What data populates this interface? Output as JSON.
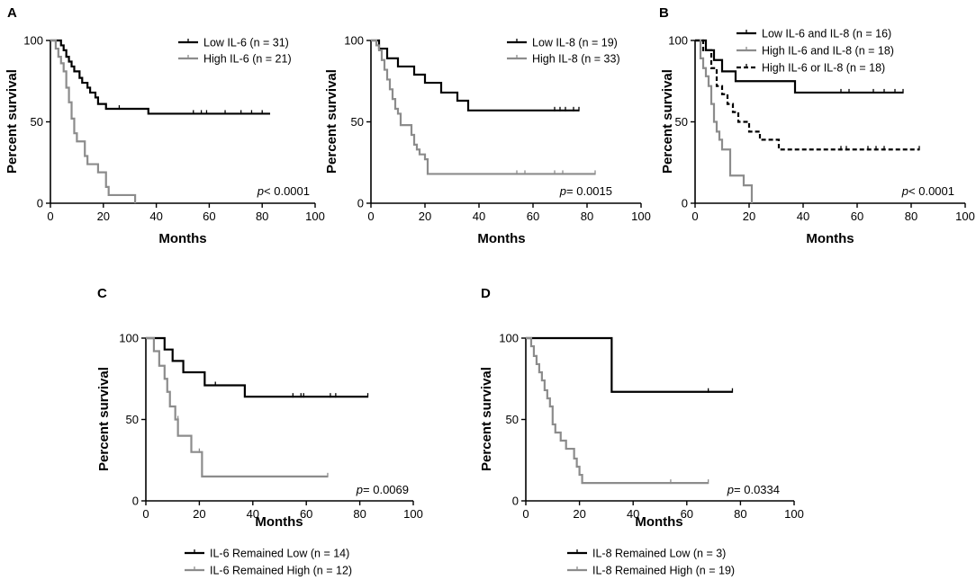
{
  "chart_data": [
    {
      "type": "line",
      "panel": "A",
      "xlabel": "Months",
      "ylabel": "Percent survival",
      "xlim": [
        0,
        100
      ],
      "ylim": [
        0,
        100
      ],
      "xticks": [
        "0",
        "20",
        "40",
        "60",
        "80",
        "100"
      ],
      "yticks": [
        "0",
        "50",
        "100"
      ],
      "legend_placement": "top-right",
      "p_prefix": "p",
      "p_text": "< 0.0001",
      "series": [
        {
          "name": "Low IL-6 (n = 31)",
          "color": "#000000",
          "dash": false,
          "steps": [
            [
              0,
              100
            ],
            [
              4,
              97
            ],
            [
              5,
              94
            ],
            [
              6,
              90
            ],
            [
              7,
              87
            ],
            [
              8,
              84
            ],
            [
              9,
              81
            ],
            [
              11,
              77
            ],
            [
              12,
              74
            ],
            [
              14,
              71
            ],
            [
              15,
              68
            ],
            [
              17,
              65
            ],
            [
              18,
              61
            ],
            [
              21,
              58
            ],
            [
              37,
              55
            ],
            [
              83,
              55
            ]
          ],
          "censored": [
            [
              26,
              58
            ],
            [
              54,
              55
            ],
            [
              57,
              55
            ],
            [
              59,
              55
            ],
            [
              66,
              55
            ],
            [
              72,
              55
            ],
            [
              76,
              55
            ],
            [
              80,
              55
            ]
          ]
        },
        {
          "name": "High IL-6 (n = 21)",
          "color": "#8c8c8c",
          "dash": false,
          "steps": [
            [
              0,
              100
            ],
            [
              2,
              95
            ],
            [
              3,
              90
            ],
            [
              4,
              86
            ],
            [
              5,
              81
            ],
            [
              6,
              71
            ],
            [
              7,
              62
            ],
            [
              8,
              52
            ],
            [
              9,
              43
            ],
            [
              10,
              38
            ],
            [
              13,
              29
            ],
            [
              14,
              24
            ],
            [
              18,
              19
            ],
            [
              21,
              10
            ],
            [
              22,
              5
            ],
            [
              32,
              0
            ]
          ],
          "censored": []
        }
      ]
    },
    {
      "type": "line",
      "panel": "",
      "xlabel": "Months",
      "ylabel": "Percent survival",
      "xlim": [
        0,
        100
      ],
      "ylim": [
        0,
        100
      ],
      "xticks": [
        "0",
        "20",
        "40",
        "60",
        "80",
        "100"
      ],
      "yticks": [
        "0",
        "50",
        "100"
      ],
      "legend_placement": "top-right",
      "p_prefix": "p",
      "p_text": "=  0.0015",
      "series": [
        {
          "name": "Low IL-8 (n = 19)",
          "color": "#000000",
          "dash": false,
          "steps": [
            [
              0,
              100
            ],
            [
              3,
              95
            ],
            [
              6,
              89
            ],
            [
              10,
              84
            ],
            [
              16,
              79
            ],
            [
              20,
              74
            ],
            [
              26,
              68
            ],
            [
              32,
              63
            ],
            [
              36,
              57
            ],
            [
              77,
              57
            ]
          ],
          "censored": [
            [
              68,
              57
            ],
            [
              70,
              57
            ],
            [
              72,
              57
            ],
            [
              75,
              57
            ],
            [
              77,
              57
            ]
          ]
        },
        {
          "name": "High IL-8 (n = 33)",
          "color": "#8c8c8c",
          "dash": false,
          "steps": [
            [
              0,
              100
            ],
            [
              2,
              97
            ],
            [
              3,
              94
            ],
            [
              4,
              88
            ],
            [
              5,
              82
            ],
            [
              6,
              76
            ],
            [
              7,
              70
            ],
            [
              8,
              64
            ],
            [
              9,
              58
            ],
            [
              10,
              55
            ],
            [
              11,
              48
            ],
            [
              15,
              42
            ],
            [
              16,
              36
            ],
            [
              17,
              33
            ],
            [
              18,
              30
            ],
            [
              20,
              27
            ],
            [
              21,
              18
            ],
            [
              83,
              18
            ]
          ],
          "censored": [
            [
              54,
              18
            ],
            [
              57,
              18
            ],
            [
              68,
              18
            ],
            [
              71,
              18
            ],
            [
              83,
              18
            ]
          ]
        }
      ]
    },
    {
      "type": "line",
      "panel": "B",
      "xlabel": "Months",
      "ylabel": "Percent survival",
      "xlim": [
        0,
        100
      ],
      "ylim": [
        0,
        100
      ],
      "xticks": [
        "0",
        "20",
        "40",
        "60",
        "80",
        "100"
      ],
      "yticks": [
        "0",
        "50",
        "100"
      ],
      "legend_placement": "top-right",
      "p_prefix": "p",
      "p_text": "< 0.0001",
      "series": [
        {
          "name": "Low IL-6 and IL-8 (n = 16)",
          "color": "#000000",
          "dash": false,
          "steps": [
            [
              0,
              100
            ],
            [
              4,
              94
            ],
            [
              7,
              88
            ],
            [
              10,
              81
            ],
            [
              15,
              75
            ],
            [
              37,
              68
            ],
            [
              77,
              68
            ]
          ],
          "censored": [
            [
              54,
              68
            ],
            [
              57,
              68
            ],
            [
              66,
              68
            ],
            [
              70,
              68
            ],
            [
              74,
              68
            ],
            [
              77,
              68
            ]
          ]
        },
        {
          "name": "High IL-6 and IL-8 (n = 18)",
          "color": "#8c8c8c",
          "dash": false,
          "steps": [
            [
              0,
              100
            ],
            [
              2,
              89
            ],
            [
              3,
              83
            ],
            [
              4,
              78
            ],
            [
              5,
              72
            ],
            [
              6,
              61
            ],
            [
              7,
              50
            ],
            [
              8,
              44
            ],
            [
              9,
              39
            ],
            [
              10,
              33
            ],
            [
              13,
              17
            ],
            [
              18,
              11
            ],
            [
              21,
              0
            ]
          ],
          "censored": []
        },
        {
          "name": "High IL-6 or IL-8 (n = 18)",
          "color": "#000000",
          "dash": true,
          "steps": [
            [
              0,
              100
            ],
            [
              3,
              94
            ],
            [
              6,
              83
            ],
            [
              8,
              72
            ],
            [
              10,
              67
            ],
            [
              12,
              61
            ],
            [
              14,
              56
            ],
            [
              16,
              50
            ],
            [
              20,
              44
            ],
            [
              24,
              39
            ],
            [
              31,
              33
            ],
            [
              83,
              33
            ]
          ],
          "censored": [
            [
              54,
              33
            ],
            [
              56,
              33
            ],
            [
              64,
              33
            ],
            [
              67,
              33
            ],
            [
              70,
              33
            ],
            [
              83,
              33
            ]
          ]
        }
      ]
    },
    {
      "type": "line",
      "panel": "C",
      "xlabel": "Months",
      "ylabel": "Percent survival",
      "xlim": [
        0,
        100
      ],
      "ylim": [
        0,
        100
      ],
      "xticks": [
        "0",
        "20",
        "40",
        "60",
        "80",
        "100"
      ],
      "yticks": [
        "0",
        "50",
        "100"
      ],
      "legend_placement": "below",
      "p_prefix": "p",
      "p_text": "= 0.0069",
      "series": [
        {
          "name": "IL-6 Remained Low (n = 14)",
          "color": "#000000",
          "dash": false,
          "steps": [
            [
              0,
              100
            ],
            [
              7,
              93
            ],
            [
              10,
              86
            ],
            [
              14,
              79
            ],
            [
              22,
              71
            ],
            [
              37,
              64
            ],
            [
              83,
              64
            ]
          ],
          "censored": [
            [
              26,
              71
            ],
            [
              55,
              64
            ],
            [
              58,
              64
            ],
            [
              59,
              64
            ],
            [
              69,
              64
            ],
            [
              71,
              64
            ],
            [
              83,
              64
            ]
          ]
        },
        {
          "name": "IL-6 Remained High (n = 12)",
          "color": "#8c8c8c",
          "dash": false,
          "steps": [
            [
              0,
              100
            ],
            [
              3,
              92
            ],
            [
              5,
              83
            ],
            [
              7,
              75
            ],
            [
              8,
              67
            ],
            [
              9,
              58
            ],
            [
              11,
              50
            ],
            [
              12,
              40
            ],
            [
              17,
              30
            ],
            [
              21,
              15
            ],
            [
              68,
              15
            ]
          ],
          "censored": [
            [
              12,
              50
            ],
            [
              20,
              30
            ],
            [
              68,
              15
            ]
          ]
        }
      ]
    },
    {
      "type": "line",
      "panel": "D",
      "xlabel": "Months",
      "ylabel": "Percent survival",
      "xlim": [
        0,
        100
      ],
      "ylim": [
        0,
        100
      ],
      "xticks": [
        "0",
        "20",
        "40",
        "60",
        "80",
        "100"
      ],
      "yticks": [
        "0",
        "50",
        "100"
      ],
      "legend_placement": "below",
      "p_prefix": "p",
      "p_text": "= 0.0334",
      "series": [
        {
          "name": "IL-8 Remained Low (n = 3)",
          "color": "#000000",
          "dash": false,
          "steps": [
            [
              0,
              100
            ],
            [
              32,
              67
            ],
            [
              77,
              67
            ]
          ],
          "censored": [
            [
              68,
              67
            ],
            [
              77,
              67
            ]
          ]
        },
        {
          "name": "IL-8 Remained High (n = 19)",
          "color": "#8c8c8c",
          "dash": false,
          "steps": [
            [
              0,
              100
            ],
            [
              2,
              95
            ],
            [
              3,
              89
            ],
            [
              4,
              84
            ],
            [
              5,
              79
            ],
            [
              6,
              74
            ],
            [
              7,
              68
            ],
            [
              8,
              63
            ],
            [
              9,
              58
            ],
            [
              10,
              47
            ],
            [
              11,
              42
            ],
            [
              13,
              37
            ],
            [
              15,
              32
            ],
            [
              18,
              26
            ],
            [
              19,
              21
            ],
            [
              20,
              16
            ],
            [
              21,
              11
            ],
            [
              68,
              11
            ]
          ],
          "censored": [
            [
              54,
              11
            ],
            [
              68,
              11
            ]
          ]
        }
      ]
    }
  ]
}
